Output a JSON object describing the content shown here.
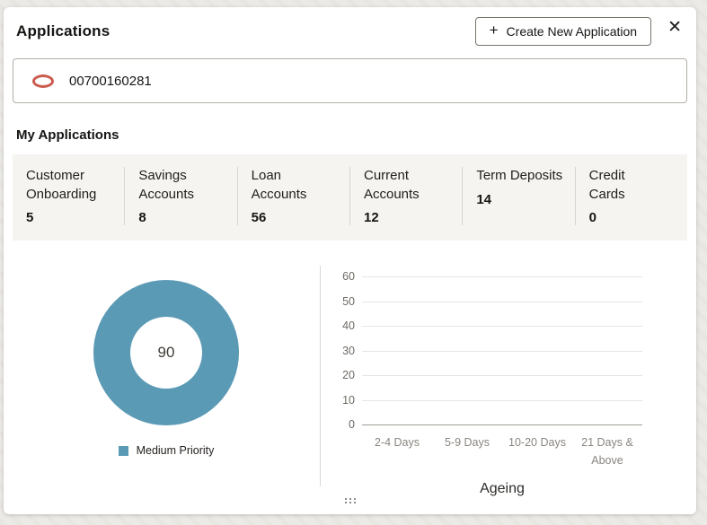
{
  "header": {
    "title": "Applications",
    "create_button": {
      "plus_icon": "+",
      "label": "Create New Application"
    },
    "close_icon": "✕"
  },
  "account_field": {
    "icon": "oracle-oval-icon",
    "value": "00700160281"
  },
  "section": {
    "title": "My Applications"
  },
  "stats": [
    {
      "line1": "Customer",
      "line2": "Onboarding",
      "value": "5"
    },
    {
      "line1": "Savings",
      "line2": "Accounts",
      "value": "8"
    },
    {
      "line1": "Loan",
      "line2": "Accounts",
      "value": "56"
    },
    {
      "line1": "Current",
      "line2": "Accounts",
      "value": "12"
    },
    {
      "line1": "Term Deposits",
      "line2": "",
      "value": "14"
    },
    {
      "line1": "Credit",
      "line2": "Cards",
      "value": "0"
    }
  ],
  "colors": {
    "accent_blue": "#5b9ab5",
    "oracle_red": "#ca5b4e",
    "stats_background": "#f5f4f1"
  },
  "chart_data": [
    {
      "type": "pie",
      "subtype": "donut",
      "series": [
        {
          "name": "Medium Priority",
          "value": 90
        }
      ],
      "center_label": "90",
      "colors": [
        "#5b9ab5"
      ],
      "legend": [
        "Medium Priority"
      ],
      "legend_position": "bottom"
    },
    {
      "type": "bar",
      "categories": [
        "2-4 Days",
        "5-9 Days",
        "10-20 Days",
        "21 Days & Above"
      ],
      "values": [
        0,
        0,
        0,
        0
      ],
      "title": "",
      "xlabel": "Ageing",
      "ylabel": "",
      "ylim": [
        0,
        60
      ],
      "yticks": [
        0,
        10,
        20,
        30,
        40,
        50,
        60
      ],
      "grid": true,
      "bar_color": "#5b9ab5"
    }
  ]
}
